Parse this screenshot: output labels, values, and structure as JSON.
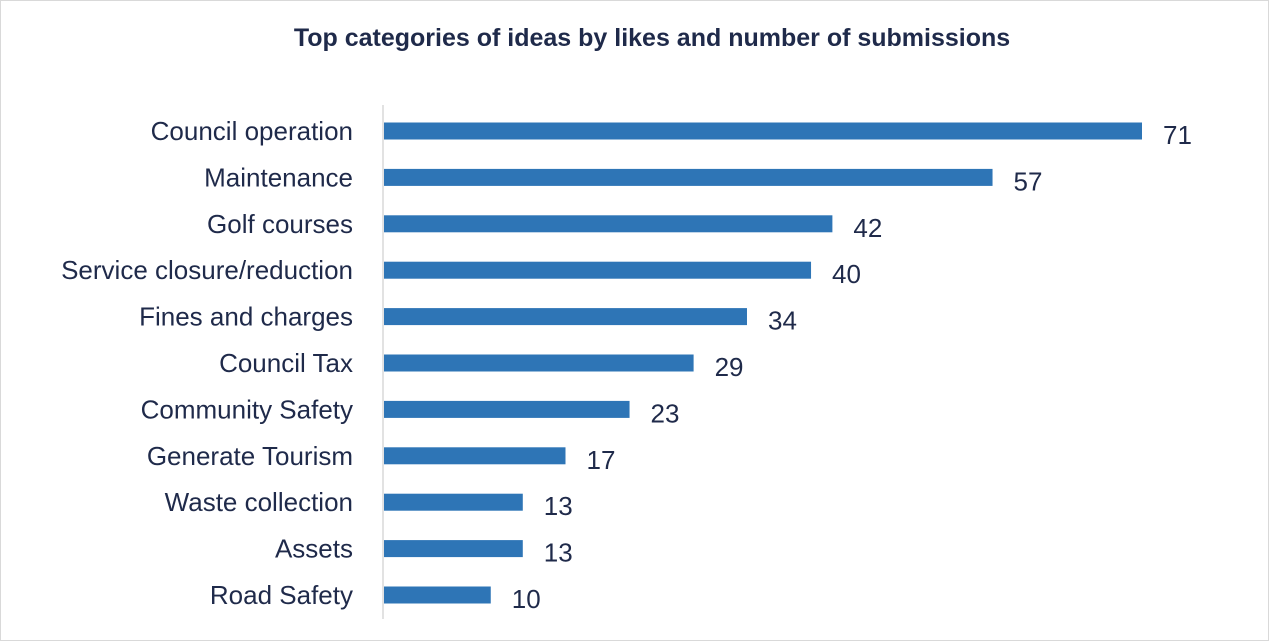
{
  "chart_data": {
    "type": "bar",
    "orientation": "horizontal",
    "title": "Top categories of ideas by likes and number of submissions",
    "categories": [
      "Council operation",
      "Maintenance",
      "Golf courses",
      "Service closure/reduction",
      "Fines and charges",
      "Council Tax",
      "Community Safety",
      "Generate Tourism",
      "Waste collection",
      "Assets",
      "Road Safety"
    ],
    "values": [
      71,
      57,
      42,
      40,
      34,
      29,
      23,
      17,
      13,
      13,
      10
    ],
    "xlim": [
      0,
      71
    ],
    "grid": false,
    "legend": "none",
    "colors": {
      "bar": "#2e75b6",
      "text": "#1f2a4a",
      "axis": "#d9d9d9"
    }
  }
}
